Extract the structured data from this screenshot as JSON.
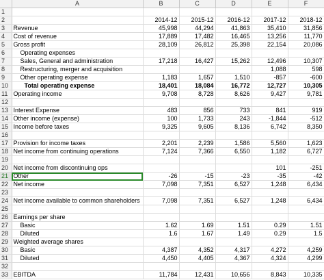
{
  "columns": [
    "A",
    "B",
    "C",
    "D",
    "E",
    "F"
  ],
  "rows": [
    {
      "n": "1",
      "label": "",
      "values": [
        "",
        "",
        "",
        "",
        ""
      ]
    },
    {
      "n": "2",
      "label": "",
      "values": [
        "2014-12",
        "2015-12",
        "2016-12",
        "2017-12",
        "2018-12"
      ]
    },
    {
      "n": "3",
      "label": "Revenue",
      "values": [
        "45,998",
        "44,294",
        "41,863",
        "35,410",
        "31,856"
      ]
    },
    {
      "n": "4",
      "label": "Cost of revenue",
      "values": [
        "17,889",
        "17,482",
        "16,465",
        "13,256",
        "11,770"
      ]
    },
    {
      "n": "5",
      "label": "Gross profit",
      "values": [
        "28,109",
        "26,812",
        "25,398",
        "22,154",
        "20,086"
      ]
    },
    {
      "n": "6",
      "label": "Operating expenses",
      "indent": 1,
      "values": [
        "",
        "",
        "",
        "",
        ""
      ]
    },
    {
      "n": "7",
      "label": "Sales, General and administration",
      "indent": 1,
      "values": [
        "17,218",
        "16,427",
        "15,262",
        "12,496",
        "10,307"
      ]
    },
    {
      "n": "8",
      "label": "Restructuring, merger and acquisition",
      "indent": 1,
      "values": [
        "",
        "",
        "",
        "1,088",
        "598"
      ]
    },
    {
      "n": "9",
      "label": "Other operating expense",
      "indent": 1,
      "values": [
        "1,183",
        "1,657",
        "1,510",
        "-857",
        "-600"
      ]
    },
    {
      "n": "10",
      "label": "Total operating expense",
      "indent": 2,
      "bold": true,
      "values": [
        "18,401",
        "18,084",
        "16,772",
        "12,727",
        "10,305"
      ]
    },
    {
      "n": "11",
      "label": "Operating income",
      "values": [
        "9,708",
        "8,728",
        "8,626",
        "9,427",
        "9,781"
      ]
    },
    {
      "n": "12",
      "label": "",
      "values": [
        "",
        "",
        "",
        "",
        ""
      ]
    },
    {
      "n": "13",
      "label": "Interest Expense",
      "values": [
        "483",
        "856",
        "733",
        "841",
        "919"
      ]
    },
    {
      "n": "14",
      "label": "Other income (expense)",
      "values": [
        "100",
        "1,733",
        "243",
        "-1,844",
        "-512"
      ]
    },
    {
      "n": "15",
      "label": "Income before taxes",
      "values": [
        "9,325",
        "9,605",
        "8,136",
        "6,742",
        "8,350"
      ]
    },
    {
      "n": "16",
      "label": "",
      "values": [
        "",
        "",
        "",
        "",
        ""
      ]
    },
    {
      "n": "17",
      "label": "Provision for income taxes",
      "values": [
        "2,201",
        "2,239",
        "1,586",
        "5,560",
        "1,623"
      ]
    },
    {
      "n": "18",
      "label": "Net income from continuing operations",
      "values": [
        "7,124",
        "7,366",
        "6,550",
        "1,182",
        "6,727"
      ]
    },
    {
      "n": "19",
      "label": "",
      "values": [
        "",
        "",
        "",
        "",
        ""
      ]
    },
    {
      "n": "20",
      "label": "Net income from discontinuing ops",
      "values": [
        "",
        "",
        "",
        "101",
        "-251"
      ]
    },
    {
      "n": "21",
      "label": "Other",
      "selected": true,
      "values": [
        "-26",
        "-15",
        "-23",
        "-35",
        "-42"
      ]
    },
    {
      "n": "22",
      "label": "Net income",
      "values": [
        "7,098",
        "7,351",
        "6,527",
        "1,248",
        "6,434"
      ]
    },
    {
      "n": "23",
      "label": "",
      "values": [
        "",
        "",
        "",
        "",
        ""
      ]
    },
    {
      "n": "24",
      "label": "Net income available to common shareholders",
      "values": [
        "7,098",
        "7,351",
        "6,527",
        "1,248",
        "6,434"
      ]
    },
    {
      "n": "25",
      "label": "",
      "values": [
        "",
        "",
        "",
        "",
        ""
      ]
    },
    {
      "n": "26",
      "label": "Earnings per share",
      "values": [
        "",
        "",
        "",
        "",
        ""
      ]
    },
    {
      "n": "27",
      "label": "Basic",
      "indent": 1,
      "values": [
        "1.62",
        "1.69",
        "1.51",
        "0.29",
        "1.51"
      ]
    },
    {
      "n": "28",
      "label": "Diluted",
      "indent": 1,
      "values": [
        "1.6",
        "1.67",
        "1.49",
        "0.29",
        "1.5"
      ]
    },
    {
      "n": "29",
      "label": "Weighted average shares",
      "values": [
        "",
        "",
        "",
        "",
        ""
      ]
    },
    {
      "n": "30",
      "label": "Basic",
      "indent": 1,
      "values": [
        "4,387",
        "4,352",
        "4,317",
        "4,272",
        "4,259"
      ]
    },
    {
      "n": "31",
      "label": "Diluted",
      "indent": 1,
      "values": [
        "4,450",
        "4,405",
        "4,367",
        "4,324",
        "4,299"
      ]
    },
    {
      "n": "32",
      "label": "",
      "values": [
        "",
        "",
        "",
        "",
        ""
      ]
    },
    {
      "n": "33",
      "label": "EBITDA",
      "values": [
        "11,784",
        "12,431",
        "10,656",
        "8,843",
        "10,335"
      ]
    }
  ]
}
